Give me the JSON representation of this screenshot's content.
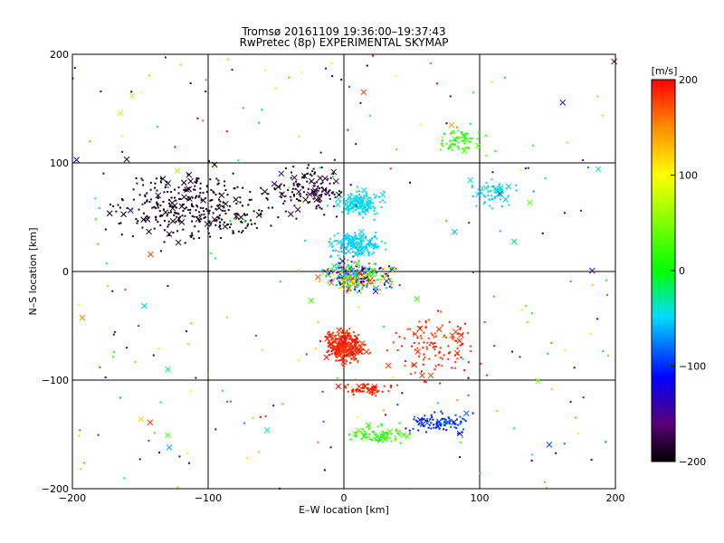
{
  "chart_data": {
    "type": "scatter",
    "title": "Tromsø 20161109 19:36:00–19:37:43",
    "subtitle": "RwPretec (8p) EXPERIMENTAL SKYMAP",
    "xlabel": "E–W location [km]",
    "ylabel": "N–S location [km]",
    "xlim": [
      -200,
      200
    ],
    "ylim": [
      -200,
      200
    ],
    "xticks": [
      -200,
      -100,
      0,
      100,
      200
    ],
    "yticks": [
      -200,
      -100,
      0,
      100,
      200
    ],
    "xtick_labels": [
      "−200",
      "−100",
      "0",
      "100",
      "200"
    ],
    "ytick_labels": [
      "−200",
      "−100",
      "0",
      "100",
      "200"
    ],
    "grid": true,
    "colorbar": {
      "label": "[m/s]",
      "range": [
        -200,
        200
      ],
      "ticks": [
        200,
        100,
        0,
        -100,
        -200
      ],
      "tick_labels": [
        "200",
        "100",
        "0",
        "−100",
        "−200"
      ]
    },
    "series": [
      {
        "name": "west-north-black",
        "center": [
          -110,
          60
        ],
        "spread": [
          48,
          26
        ],
        "vrange": [
          -200,
          -185
        ],
        "count": 340
      },
      {
        "name": "north-central-dark",
        "center": [
          -25,
          75
        ],
        "spread": [
          22,
          18
        ],
        "vrange": [
          -200,
          -170
        ],
        "count": 140
      },
      {
        "name": "upper-cyan-blob",
        "center": [
          12,
          63
        ],
        "spread": [
          12,
          10
        ],
        "vrange": [
          -55,
          -35
        ],
        "count": 150
      },
      {
        "name": "mid-cyan-blob",
        "center": [
          10,
          25
        ],
        "spread": [
          16,
          9
        ],
        "vrange": [
          -60,
          -40
        ],
        "count": 160
      },
      {
        "name": "center-mixed",
        "center": [
          10,
          -5
        ],
        "spread": [
          22,
          12
        ],
        "vrange": [
          -200,
          200
        ],
        "count": 300
      },
      {
        "name": "south-red-blob",
        "center": [
          0,
          -68
        ],
        "spread": [
          12,
          12
        ],
        "vrange": [
          175,
          200
        ],
        "count": 280
      },
      {
        "name": "east-red-spread",
        "center": [
          70,
          -70
        ],
        "spread": [
          28,
          30
        ],
        "vrange": [
          170,
          200
        ],
        "count": 130
      },
      {
        "name": "south-red-patch",
        "center": [
          15,
          -108
        ],
        "spread": [
          16,
          6
        ],
        "vrange": [
          175,
          200
        ],
        "count": 60
      },
      {
        "name": "southeast-blue-band",
        "center": [
          70,
          -140
        ],
        "spread": [
          22,
          8
        ],
        "vrange": [
          -120,
          -80
        ],
        "count": 100
      },
      {
        "name": "south-green-band",
        "center": [
          25,
          -150
        ],
        "spread": [
          20,
          7
        ],
        "vrange": [
          -10,
          50
        ],
        "count": 80
      },
      {
        "name": "northeast-teal-green",
        "center": [
          85,
          120
        ],
        "spread": [
          14,
          10
        ],
        "vrange": [
          -10,
          40
        ],
        "count": 60
      },
      {
        "name": "east-cyan-patch",
        "center": [
          110,
          70
        ],
        "spread": [
          15,
          12
        ],
        "vrange": [
          -60,
          -30
        ],
        "count": 55
      },
      {
        "name": "scatter-background",
        "center": [
          0,
          0
        ],
        "spread": [
          200,
          200
        ],
        "vrange": [
          -200,
          200
        ],
        "count": 260
      }
    ]
  }
}
